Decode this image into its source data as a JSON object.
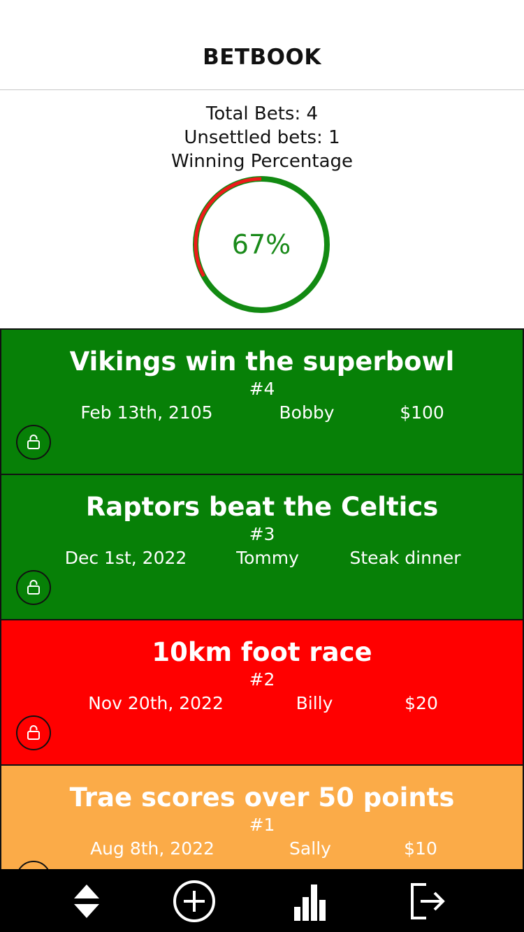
{
  "header": {
    "title": "BETBOOK"
  },
  "stats": {
    "total_bets": "Total Bets: 4",
    "unsettled_bets": "Unsettled bets: 1",
    "winning_percentage_label": "Winning Percentage",
    "winning_percentage_value": "67%",
    "win_fraction": 0.67,
    "colors": {
      "win": "#128a12",
      "loss": "#ee1a1a"
    }
  },
  "bets": [
    {
      "title": "Vikings win the superbowl",
      "number": "#4",
      "date": "Feb 13th, 2105",
      "person": "Bobby",
      "stake": "$100",
      "status_color": "#078007",
      "lock_icon": "lock-icon"
    },
    {
      "title": "Raptors beat the Celtics",
      "number": "#3",
      "date": "Dec 1st, 2022",
      "person": "Tommy",
      "stake": "Steak dinner",
      "status_color": "#078007",
      "lock_icon": "lock-icon"
    },
    {
      "title": "10km foot race",
      "number": "#2",
      "date": "Nov 20th, 2022",
      "person": "Billy",
      "stake": "$20",
      "status_color": "#ff0000",
      "lock_icon": "lock-icon"
    },
    {
      "title": "Trae scores over 50 points",
      "number": "#1",
      "date": "Aug 8th, 2022",
      "person": "Sally",
      "stake": "$10",
      "status_color": "#fbab48",
      "lock_icon": "lock-icon"
    }
  ],
  "tabbar": {
    "items": [
      {
        "icon": "sort-icon"
      },
      {
        "icon": "add-circle-icon"
      },
      {
        "icon": "bar-chart-icon"
      },
      {
        "icon": "logout-icon"
      }
    ]
  }
}
